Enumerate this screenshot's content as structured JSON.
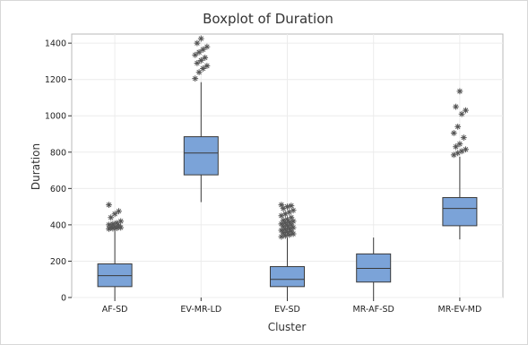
{
  "chart_data": {
    "type": "boxplot",
    "title": "Boxplot of Duration",
    "xlabel": "Cluster",
    "ylabel": "Duration",
    "ylim": [
      0,
      1450
    ],
    "yticks": [
      0,
      200,
      400,
      600,
      800,
      1000,
      1200,
      1400
    ],
    "grid": true,
    "colors": {
      "box": "#7ba3d8",
      "outline": "#3a3a3a",
      "grid": "#ececec",
      "outlier": "#555555"
    },
    "categories": [
      "AF-SD",
      "EV-MR-LD",
      "EV-SD",
      "MR-AF-SD",
      "MR-EV-MD"
    ],
    "boxes": [
      {
        "category": "AF-SD",
        "whisker_low": 0,
        "q1": 60,
        "median": 120,
        "q3": 185,
        "whisker_high": 375,
        "outliers": [
          378,
          380,
          382,
          385,
          388,
          390,
          395,
          400,
          405,
          410,
          420,
          440,
          460,
          475,
          510
        ]
      },
      {
        "category": "EV-MR-LD",
        "whisker_low": 525,
        "q1": 675,
        "median": 795,
        "q3": 885,
        "whisker_high": 1185,
        "outliers": [
          1205,
          1240,
          1260,
          1275,
          1290,
          1305,
          1320,
          1335,
          1350,
          1365,
          1380,
          1400,
          1425
        ]
      },
      {
        "category": "EV-SD",
        "whisker_low": 0,
        "q1": 60,
        "median": 100,
        "q3": 170,
        "whisker_high": 330,
        "outliers": [
          335,
          340,
          345,
          350,
          355,
          360,
          365,
          370,
          375,
          380,
          385,
          390,
          395,
          400,
          405,
          410,
          415,
          420,
          425,
          430,
          440,
          450,
          460,
          470,
          480,
          490,
          500,
          505,
          510
        ]
      },
      {
        "category": "MR-AF-SD",
        "whisker_low": 0,
        "q1": 85,
        "median": 160,
        "q3": 240,
        "whisker_high": 330,
        "outliers": []
      },
      {
        "category": "MR-EV-MD",
        "whisker_low": 320,
        "q1": 395,
        "median": 490,
        "q3": 550,
        "whisker_high": 775,
        "outliers": [
          785,
          795,
          805,
          815,
          830,
          845,
          880,
          905,
          940,
          1010,
          1030,
          1050,
          1135
        ]
      }
    ]
  }
}
